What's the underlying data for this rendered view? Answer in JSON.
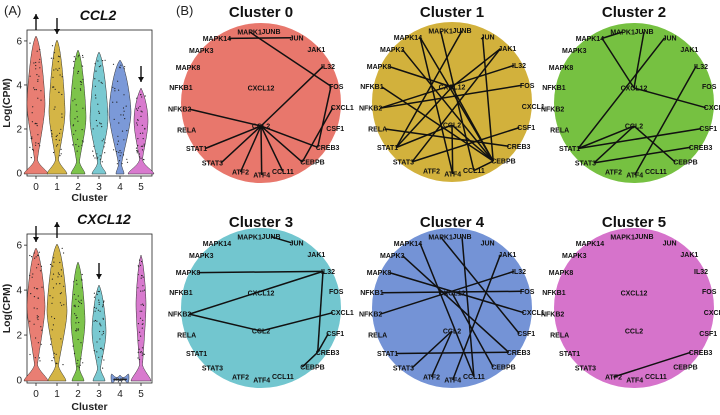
{
  "panel_a_label": "(A)",
  "panel_b_label": "(B)",
  "violins": [
    {
      "gene": "CCL2",
      "ylabel": "Log(CPM)",
      "xlabel": "Cluster",
      "yticks": [
        "0",
        "2",
        "4",
        "6"
      ],
      "clusters": [
        "0",
        "1",
        "2",
        "3",
        "4",
        "5"
      ],
      "arrows": [
        {
          "cluster": 0,
          "dir": "up"
        },
        {
          "cluster": 1,
          "dir": "down"
        },
        {
          "cluster": 5,
          "dir": "down"
        }
      ]
    },
    {
      "gene": "CXCL12",
      "ylabel": "Log(CPM)",
      "xlabel": "Cluster",
      "yticks": [
        "0",
        "2",
        "4",
        "6"
      ],
      "clusters": [
        "0",
        "1",
        "2",
        "3",
        "4",
        "5"
      ],
      "arrows": [
        {
          "cluster": 0,
          "dir": "down"
        },
        {
          "cluster": 1,
          "dir": "up"
        },
        {
          "cluster": 3,
          "dir": "down"
        }
      ]
    }
  ],
  "cluster_colors": [
    "#e8776c",
    "#d2b13c",
    "#76c141",
    "#72c6cf",
    "#7493d6",
    "#d673cb"
  ],
  "genes": [
    "JUNB",
    "JUN",
    "JAK1",
    "IL32",
    "FOS",
    "CXCL1",
    "CSF1",
    "CREB3",
    "CEBPB",
    "CCL11",
    "ATF4",
    "ATF2",
    "STAT3",
    "STAT1",
    "RELA",
    "NFKB2",
    "NFKB1",
    "MAPK8",
    "MAPK3",
    "MAPK14",
    "MAPK1"
  ],
  "center_genes": [
    "CXCL12",
    "CCL2"
  ],
  "networks": [
    {
      "title": "Cluster 0",
      "edges": [
        [
          "MAPK1",
          "FOS"
        ],
        [
          "JUN",
          "MAPK14"
        ],
        [
          "CCL2",
          "NFKB2"
        ],
        [
          "CCL2",
          "STAT1"
        ],
        [
          "CCL2",
          "STAT3"
        ],
        [
          "CCL2",
          "ATF2"
        ],
        [
          "CCL2",
          "ATF4"
        ],
        [
          "CCL2",
          "CREB3"
        ],
        [
          "CCL2",
          "CCL11"
        ],
        [
          "CCL2",
          "CEBPB"
        ],
        [
          "CCL2",
          "IL32"
        ],
        [
          "CXCL1",
          "CEBPB"
        ],
        [
          "FOS",
          "CREB3"
        ]
      ]
    },
    {
      "title": "Cluster 1",
      "edges": [
        [
          "MAPK1",
          "CCL11"
        ],
        [
          "MAPK14",
          "CEBPB"
        ],
        [
          "JUNB",
          "STAT1"
        ],
        [
          "JUN",
          "CEBPB"
        ],
        [
          "JAK1",
          "STAT3"
        ],
        [
          "IL32",
          "NFKB2"
        ],
        [
          "CXCL12",
          "CEBPB"
        ],
        [
          "CXCL12",
          "JAK1"
        ],
        [
          "CXCL12",
          "STAT1"
        ],
        [
          "CXCL12",
          "MAPK8"
        ],
        [
          "CCL2",
          "ATF4"
        ],
        [
          "CCL2",
          "STAT1"
        ],
        [
          "CCL2",
          "CEBPB"
        ],
        [
          "NFKB1",
          "CEBPB"
        ],
        [
          "MAPK3",
          "CEBPB"
        ],
        [
          "CSF1",
          "STAT3"
        ],
        [
          "FOS",
          "NFKB2"
        ],
        [
          "CREB3",
          "RELA"
        ],
        [
          "MAPK14",
          "ATF4"
        ],
        [
          "CCL11",
          "CEBPB"
        ]
      ]
    },
    {
      "title": "Cluster 2",
      "edges": [
        [
          "MAPK1",
          "MAPK14"
        ],
        [
          "JUNB",
          "CXCL12"
        ],
        [
          "CXCL12",
          "CXCL1"
        ],
        [
          "CXCL12",
          "MAPK14"
        ],
        [
          "CCL2",
          "STAT1"
        ],
        [
          "CCL2",
          "STAT3"
        ],
        [
          "CCL2",
          "CEBPB"
        ],
        [
          "JUN",
          "STAT1"
        ],
        [
          "CSF1",
          "STAT1"
        ],
        [
          "CREB3",
          "STAT3"
        ],
        [
          "IL32",
          "ATF4"
        ]
      ]
    },
    {
      "title": "Cluster 3",
      "edges": [
        [
          "JUNB",
          "JUN"
        ],
        [
          "IL32",
          "NFKB2"
        ],
        [
          "IL32",
          "MAPK8"
        ],
        [
          "IL32",
          "CREB3"
        ],
        [
          "CCL2",
          "NFKB2"
        ],
        [
          "CCL2",
          "CXCL1"
        ],
        [
          "CREB3",
          "CEBPB"
        ],
        [
          "CSF1",
          "CREB3"
        ]
      ]
    },
    {
      "title": "Cluster 4",
      "edges": [
        [
          "MAPK14",
          "CCL11"
        ],
        [
          "MAPK1",
          "CSF1"
        ],
        [
          "MAPK8",
          "CXCL1"
        ],
        [
          "NFKB1",
          "FOS"
        ],
        [
          "NFKB2",
          "IL32"
        ],
        [
          "STAT1",
          "CREB3"
        ],
        [
          "CXCL12",
          "CEBPB"
        ],
        [
          "CCL2",
          "ATF2"
        ],
        [
          "CCL2",
          "STAT3"
        ],
        [
          "JAK1",
          "ATF4"
        ],
        [
          "JUNB",
          "CCL11"
        ],
        [
          "MAPK3",
          "CREB3"
        ]
      ]
    },
    {
      "title": "Cluster 5",
      "edges": [
        [
          "CREB3",
          "ATF2"
        ]
      ]
    }
  ]
}
